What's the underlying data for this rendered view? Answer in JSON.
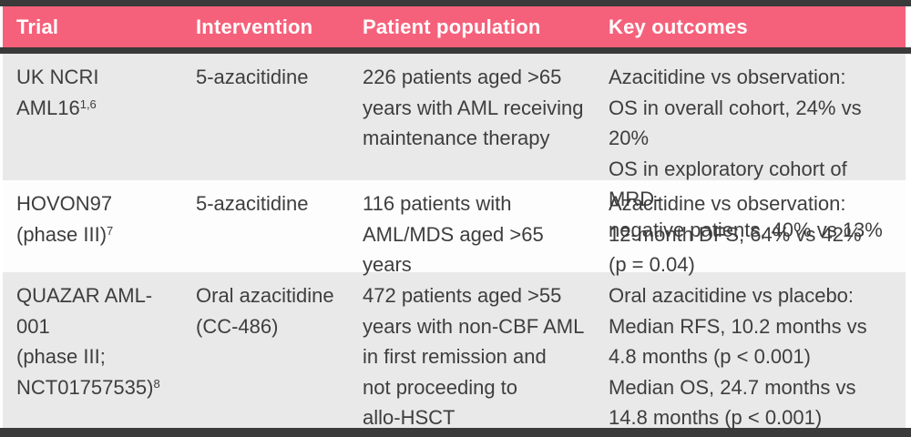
{
  "table": {
    "columns": [
      {
        "label": "Trial"
      },
      {
        "label": "Intervention"
      },
      {
        "label": "Patient population"
      },
      {
        "label": "Key outcomes"
      }
    ],
    "rows": [
      {
        "trial_main": "UK NCRI AML16",
        "trial_sup": "1,6",
        "intervention": "5-azacitidine",
        "population": "226 patients aged >65\nyears with AML receiving\nmaintenance therapy",
        "outcomes": "Azacitidine vs observation:\nOS in overall cohort, 24% vs 20%\nOS in exploratory cohort of MRD-\nnegative patients, 40% vs 13%"
      },
      {
        "trial_main": "HOVON97\n(phase III)",
        "trial_sup": "7",
        "intervention": "5-azacitidine",
        "population": "116 patients with\nAML/MDS aged >65\nyears",
        "outcomes": "Azacitidine vs observation:\n12-month DFS, 64% vs 42%\n(p = 0.04)"
      },
      {
        "trial_main": "QUAZAR AML-001\n(phase III;\nNCT01757535)",
        "trial_sup": "8",
        "intervention": "Oral azacitidine\n(CC-486)",
        "population": "472 patients aged >55\nyears with non-CBF AML\nin first remission and\nnot proceeding to\nallo-HSCT",
        "outcomes": "Oral azacitidine vs placebo:\nMedian RFS, 10.2 months vs\n4.8 months (p < 0.001)\nMedian OS, 24.7 months vs\n14.8 months (p < 0.001)"
      }
    ],
    "colors": {
      "header_bg": "#f5617b",
      "header_text": "#ffffff",
      "rule": "#3a3a3a",
      "row_gray_bg": "#e9e9e9",
      "row_white_bg": "#fdfdfd",
      "body_text": "#3e3e3e"
    }
  }
}
